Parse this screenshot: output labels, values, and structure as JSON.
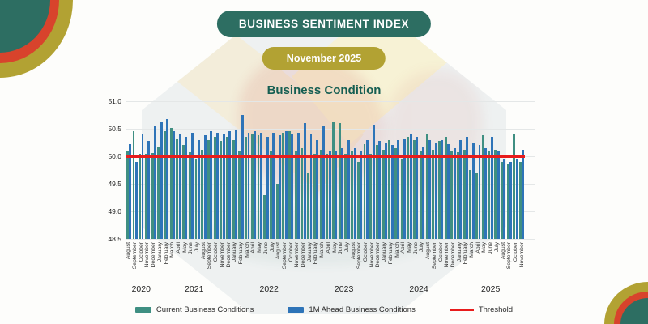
{
  "header": {
    "banner": "BUSINESS SENTIMENT INDEX",
    "date": "November 2025"
  },
  "colors": {
    "banner_bg": "#2d6e62",
    "date_pill_bg": "#b2a233",
    "title_text": "#155e52",
    "corner_teal": "#2d6e62",
    "corner_red": "#d8432c",
    "corner_gold": "#b2a233",
    "bar_current": "#3f8f82",
    "bar_ahead": "#2e74b8",
    "threshold": "#e81c1c"
  },
  "chart_data": {
    "type": "bar",
    "title": "Business Condition",
    "ylim": [
      48.5,
      51.0
    ],
    "yticks": [
      51.0,
      50.5,
      50.0,
      49.5,
      49.0,
      48.5
    ],
    "grid": true,
    "legend_position": "bottom",
    "threshold": 50.0,
    "threshold_label": "Threshold",
    "months": [
      "August",
      "September",
      "October",
      "November",
      "December",
      "January",
      "February",
      "March",
      "April",
      "May",
      "June",
      "July",
      "August",
      "September",
      "October",
      "November",
      "December",
      "January",
      "February",
      "March",
      "April",
      "May",
      "June",
      "July",
      "August",
      "September",
      "October",
      "November",
      "December",
      "January",
      "February",
      "March",
      "April",
      "May",
      "June",
      "July",
      "August",
      "September",
      "October",
      "November",
      "December",
      "January",
      "February",
      "March",
      "April",
      "May",
      "June",
      "July",
      "August",
      "September",
      "October",
      "November",
      "December",
      "January",
      "February",
      "March",
      "April",
      "May",
      "June",
      "July",
      "August",
      "September",
      "October",
      "November"
    ],
    "year_spans": [
      {
        "label": "2020",
        "start": 0,
        "count": 5
      },
      {
        "label": "2021",
        "start": 5,
        "count": 12
      },
      {
        "label": "2022",
        "start": 17,
        "count": 12
      },
      {
        "label": "2023",
        "start": 29,
        "count": 12
      },
      {
        "label": "2024",
        "start": 41,
        "count": 12
      },
      {
        "label": "2025",
        "start": 53,
        "count": 11
      }
    ],
    "series": [
      {
        "name": "Current Business Conditions",
        "color": "#3f8f82",
        "values": [
          50.1,
          50.45,
          50.05,
          50.05,
          50.06,
          50.18,
          50.46,
          50.52,
          50.32,
          50.2,
          50.08,
          49.95,
          50.12,
          50.3,
          50.35,
          50.28,
          50.35,
          50.3,
          50.1,
          50.35,
          50.4,
          50.38,
          49.3,
          50.1,
          49.5,
          50.42,
          50.45,
          50.1,
          50.15,
          49.7,
          50.05,
          50.12,
          50.05,
          50.62,
          50.6,
          50.05,
          50.1,
          49.9,
          50.22,
          50.05,
          50.2,
          50.12,
          50.3,
          50.15,
          49.95,
          50.35,
          50.3,
          50.1,
          50.4,
          50.12,
          50.28,
          50.35,
          50.1,
          50.08,
          50.12,
          49.75,
          49.7,
          50.38,
          50.1,
          50.12,
          49.9,
          49.85,
          50.4,
          49.9
        ]
      },
      {
        "name": "1M Ahead Business Conditions",
        "color": "#2e74b8",
        "values": [
          50.22,
          49.9,
          50.4,
          50.28,
          50.55,
          50.62,
          50.68,
          50.45,
          50.4,
          50.35,
          50.42,
          50.3,
          50.38,
          50.45,
          50.42,
          50.4,
          50.45,
          50.48,
          50.75,
          50.42,
          50.45,
          50.42,
          50.35,
          50.42,
          50.38,
          50.45,
          50.4,
          50.42,
          50.6,
          50.4,
          50.3,
          50.55,
          50.1,
          50.1,
          50.15,
          50.3,
          50.15,
          50.1,
          50.3,
          50.58,
          50.28,
          50.25,
          50.2,
          50.3,
          50.32,
          50.4,
          50.35,
          50.18,
          50.3,
          50.25,
          50.3,
          50.22,
          50.15,
          50.3,
          50.35,
          50.25,
          50.2,
          50.15,
          50.35,
          50.1,
          49.95,
          49.9,
          49.95,
          50.12
        ]
      }
    ]
  }
}
